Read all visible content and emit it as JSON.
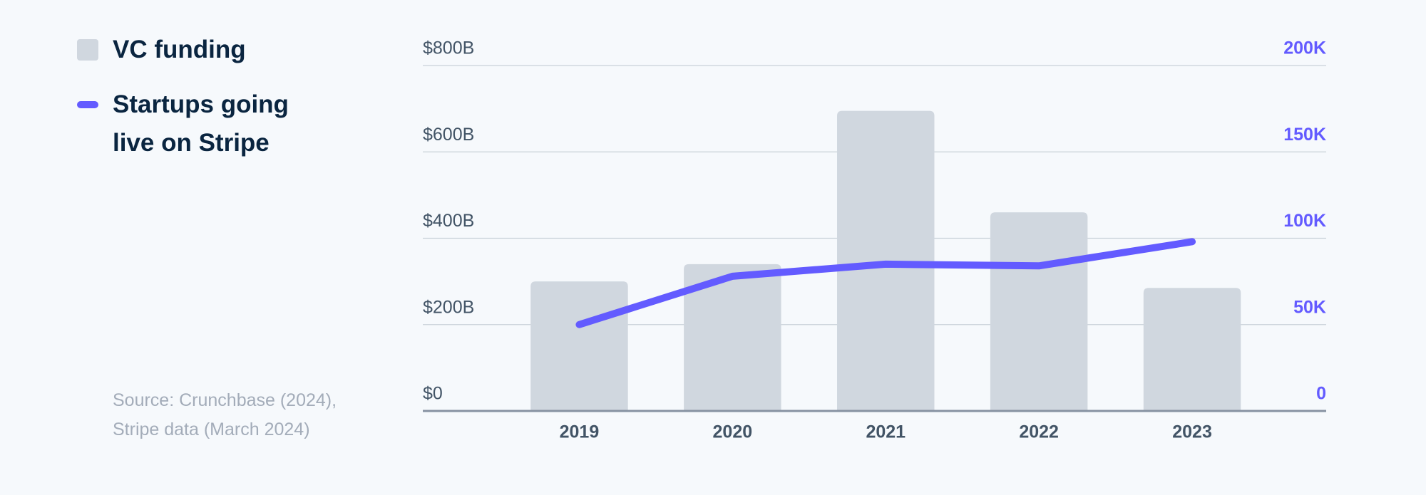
{
  "chart_data": {
    "type": "bar",
    "categories": [
      "2019",
      "2020",
      "2021",
      "2022",
      "2023"
    ],
    "series": [
      {
        "name": "VC funding",
        "type": "bar",
        "color": "#d0d7df",
        "values": [
          300,
          340,
          695,
          460,
          285
        ]
      },
      {
        "name": "Startups going live on Stripe",
        "type": "line",
        "color": "#635bff",
        "axis": "y2",
        "values": [
          50000,
          78000,
          85000,
          84000,
          98000
        ]
      }
    ],
    "ylim": [
      0,
      800
    ],
    "yticks": [
      {
        "value": 0,
        "label": "$0"
      },
      {
        "value": 200,
        "label": "$200B"
      },
      {
        "value": 400,
        "label": "$400B"
      },
      {
        "value": 600,
        "label": "$600B"
      },
      {
        "value": 800,
        "label": "$800B"
      }
    ],
    "y2lim": [
      0,
      200000
    ],
    "y2ticks": [
      0,
      {
        "value": 50000,
        "label": "50K"
      },
      {
        "value": 100000,
        "label": "100K"
      },
      {
        "value": 150000,
        "label": "150K"
      },
      {
        "value": 200000,
        "label": "200K"
      }
    ],
    "grid": true,
    "source": "Source: Crunchbase (2024), Stripe data (March 2024)"
  }
}
